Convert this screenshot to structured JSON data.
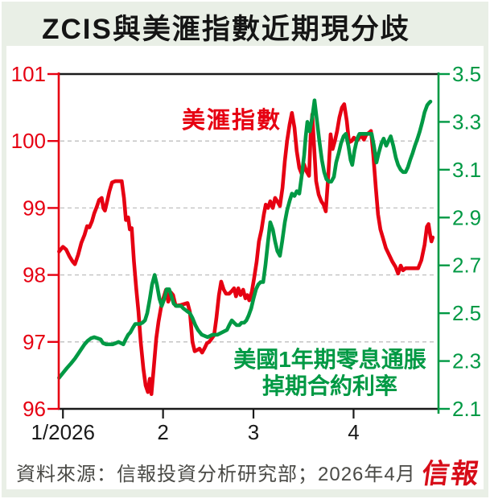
{
  "title": "ZCIS與美滙指數近期現分歧",
  "labels": {
    "red_series": "美滙指數",
    "green_series_line1": "美國1年期零息通脹",
    "green_series_line2": "掉期合約利率"
  },
  "footer": {
    "source": "資料來源：信報投資分析研究部；2026年4月",
    "logo": "信報"
  },
  "colors": {
    "red": "#e60012",
    "green": "#009944",
    "axis_black": "#1a1a1a",
    "gridline": "#bfbfbf",
    "background_mint": "#e9efe6"
  },
  "chart_data": {
    "type": "line",
    "title": "ZCIS與美滙指數近期現分歧",
    "x_unit": "days since 1/2026 (daily series, Jan–late Apr 2026)",
    "x_axis": {
      "range": [
        -1.3,
        116.3
      ],
      "ticks": [
        0,
        31,
        59,
        90
      ],
      "tick_labels": [
        "1/2026",
        "2",
        "3",
        "4"
      ]
    },
    "left_axis": {
      "name": "美滙指數",
      "color": "#e60012",
      "range": [
        96,
        101
      ],
      "ticks": [
        96,
        97,
        98,
        99,
        100,
        101
      ]
    },
    "right_axis": {
      "name": "美國1年期零息通脹掉期合約利率 (%)",
      "color": "#009944",
      "range": [
        2.1,
        3.5
      ],
      "ticks": [
        2.1,
        2.3,
        2.5,
        2.7,
        2.9,
        3.1,
        3.3,
        3.5
      ]
    },
    "gridlines_left_values": [
      97,
      98,
      99,
      100
    ],
    "legend_position": "in-plot text labels",
    "series": [
      {
        "name": "美滙指數",
        "axis": "left",
        "color": "#e60012",
        "points": [
          [
            -1.2,
            98.35
          ],
          [
            0,
            98.42
          ],
          [
            1,
            98.38
          ],
          [
            2,
            98.28
          ],
          [
            3,
            98.2
          ],
          [
            3.7,
            98.16
          ],
          [
            4.7,
            98.3
          ],
          [
            5.7,
            98.48
          ],
          [
            6.7,
            98.6
          ],
          [
            7.5,
            98.73
          ],
          [
            8.2,
            98.71
          ],
          [
            9,
            98.8
          ],
          [
            9.7,
            98.92
          ],
          [
            10.5,
            99.02
          ],
          [
            11.2,
            99.12
          ],
          [
            12,
            99.15
          ],
          [
            12.5,
            99.0
          ],
          [
            13,
            98.96
          ],
          [
            13.7,
            99.1
          ],
          [
            14.4,
            99.25
          ],
          [
            15.2,
            99.38
          ],
          [
            16.2,
            99.4
          ],
          [
            18.2,
            99.4
          ],
          [
            18.9,
            99.15
          ],
          [
            19.5,
            98.82
          ],
          [
            20.2,
            98.86
          ],
          [
            20.7,
            98.68
          ],
          [
            21.3,
            98.7
          ],
          [
            22,
            98.2
          ],
          [
            22.7,
            97.8
          ],
          [
            23.4,
            97.45
          ],
          [
            24.1,
            97.0
          ],
          [
            24.9,
            96.6
          ],
          [
            25.6,
            96.35
          ],
          [
            26.3,
            96.25
          ],
          [
            26.9,
            96.45
          ],
          [
            27.4,
            96.22
          ],
          [
            28.1,
            96.6
          ],
          [
            28.9,
            97.05
          ],
          [
            29.6,
            97.3
          ],
          [
            30.4,
            97.52
          ],
          [
            31.1,
            97.65
          ],
          [
            31.9,
            97.78
          ],
          [
            32.6,
            97.6
          ],
          [
            33.4,
            97.74
          ],
          [
            34.1,
            97.7
          ],
          [
            34.9,
            97.54
          ],
          [
            36.5,
            97.55
          ],
          [
            38.6,
            97.58
          ],
          [
            39.3,
            97.45
          ],
          [
            40.1,
            97.0
          ],
          [
            40.8,
            96.86
          ],
          [
            41.6,
            96.88
          ],
          [
            42.3,
            96.9
          ],
          [
            43.1,
            96.84
          ],
          [
            43.8,
            96.9
          ],
          [
            44.6,
            96.98
          ],
          [
            45.3,
            97.0
          ],
          [
            46.1,
            97.05
          ],
          [
            46.8,
            97.1
          ],
          [
            47.5,
            97.35
          ],
          [
            48.3,
            97.7
          ],
          [
            49,
            97.9
          ],
          [
            49.8,
            97.78
          ],
          [
            50.5,
            97.72
          ],
          [
            51.5,
            97.72
          ],
          [
            52.3,
            97.76
          ],
          [
            53,
            97.8
          ],
          [
            53.6,
            97.68
          ],
          [
            54.3,
            97.8
          ],
          [
            55,
            97.7
          ],
          [
            55.8,
            97.78
          ],
          [
            56.5,
            97.65
          ],
          [
            57.1,
            97.7
          ],
          [
            57.7,
            97.62
          ],
          [
            58.5,
            97.75
          ],
          [
            59.2,
            97.95
          ],
          [
            60,
            98.2
          ],
          [
            60.7,
            98.5
          ],
          [
            61.5,
            98.68
          ],
          [
            62.2,
            98.9
          ],
          [
            62.8,
            99.05
          ],
          [
            63.5,
            99.0
          ],
          [
            64.2,
            99.1
          ],
          [
            65,
            99.0
          ],
          [
            65.7,
            99.15
          ],
          [
            66.4,
            99.1
          ],
          [
            67.2,
            99.03
          ],
          [
            68,
            99.3
          ],
          [
            68.7,
            99.7
          ],
          [
            69.4,
            100.0
          ],
          [
            70.2,
            100.25
          ],
          [
            70.9,
            100.42
          ],
          [
            71.7,
            100.2
          ],
          [
            72.4,
            99.85
          ],
          [
            73.2,
            99.6
          ],
          [
            74,
            99.5
          ],
          [
            74.7,
            99.65
          ],
          [
            75.4,
            99.55
          ],
          [
            76.2,
            99.48
          ],
          [
            76.7,
            100.08
          ],
          [
            77.2,
            100.4
          ],
          [
            77.8,
            99.9
          ],
          [
            78.4,
            99.4
          ],
          [
            79.2,
            99.2
          ],
          [
            80,
            99.1
          ],
          [
            80.7,
            99.05
          ],
          [
            81.4,
            98.95
          ],
          [
            82.2,
            99.5
          ],
          [
            82.9,
            100.1
          ],
          [
            83.5,
            99.88
          ],
          [
            84.2,
            100.0
          ],
          [
            84.9,
            100.15
          ],
          [
            85.6,
            100.35
          ],
          [
            86.4,
            100.5
          ],
          [
            87.1,
            100.55
          ],
          [
            87.9,
            100.3
          ],
          [
            88.6,
            99.98
          ],
          [
            89.4,
            100.0
          ],
          [
            90.1,
            100.05
          ],
          [
            91,
            100.0
          ],
          [
            91.8,
            100.05
          ],
          [
            92.5,
            100.08
          ],
          [
            93.2,
            100.02
          ],
          [
            94,
            100.1
          ],
          [
            94.7,
            100.12
          ],
          [
            95.4,
            100.15
          ],
          [
            96.1,
            99.8
          ],
          [
            96.9,
            99.3
          ],
          [
            97.6,
            98.9
          ],
          [
            98.3,
            98.68
          ],
          [
            99.1,
            98.55
          ],
          [
            100,
            98.4
          ],
          [
            101,
            98.3
          ],
          [
            102,
            98.2
          ],
          [
            103,
            98.12
          ],
          [
            103.8,
            98.02
          ],
          [
            104.6,
            98.14
          ],
          [
            105.3,
            98.07
          ],
          [
            106.1,
            98.1
          ],
          [
            108,
            98.1
          ],
          [
            110,
            98.1
          ],
          [
            111,
            98.22
          ],
          [
            112,
            98.45
          ],
          [
            112.7,
            98.72
          ],
          [
            113.2,
            98.76
          ],
          [
            113.7,
            98.6
          ],
          [
            114.1,
            98.5
          ],
          [
            114.5,
            98.56
          ]
        ]
      },
      {
        "name": "美國1年期零息通脹掉期合約利率",
        "axis": "right",
        "color": "#009944",
        "points": [
          [
            -1.2,
            2.23
          ],
          [
            0,
            2.25
          ],
          [
            1.2,
            2.27
          ],
          [
            2.5,
            2.29
          ],
          [
            3.7,
            2.31
          ],
          [
            4.7,
            2.33
          ],
          [
            5.7,
            2.35
          ],
          [
            6.7,
            2.37
          ],
          [
            7.7,
            2.385
          ],
          [
            8.7,
            2.395
          ],
          [
            9.7,
            2.4
          ],
          [
            10.7,
            2.395
          ],
          [
            11.7,
            2.39
          ],
          [
            12.4,
            2.375
          ],
          [
            13.4,
            2.37
          ],
          [
            15.4,
            2.37
          ],
          [
            16.4,
            2.375
          ],
          [
            17.2,
            2.38
          ],
          [
            18.7,
            2.37
          ],
          [
            19.4,
            2.39
          ],
          [
            20.2,
            2.41
          ],
          [
            20.9,
            2.42
          ],
          [
            21.7,
            2.44
          ],
          [
            22.4,
            2.455
          ],
          [
            23.9,
            2.455
          ],
          [
            24.6,
            2.46
          ],
          [
            25.4,
            2.47
          ],
          [
            26.1,
            2.5
          ],
          [
            26.9,
            2.56
          ],
          [
            27.6,
            2.62
          ],
          [
            28.4,
            2.66
          ],
          [
            29.1,
            2.62
          ],
          [
            29.9,
            2.56
          ],
          [
            30.6,
            2.53
          ],
          [
            31.4,
            2.56
          ],
          [
            32.1,
            2.6
          ],
          [
            32.9,
            2.6
          ],
          [
            33.6,
            2.57
          ],
          [
            34.3,
            2.54
          ],
          [
            35.1,
            2.53
          ],
          [
            36.6,
            2.53
          ],
          [
            37.3,
            2.52
          ],
          [
            38.3,
            2.51
          ],
          [
            39.3,
            2.5
          ],
          [
            40.1,
            2.48
          ],
          [
            41,
            2.45
          ],
          [
            41.8,
            2.43
          ],
          [
            43,
            2.41
          ],
          [
            44.8,
            2.4
          ],
          [
            46.3,
            2.41
          ],
          [
            47.8,
            2.41
          ],
          [
            49.3,
            2.42
          ],
          [
            50.8,
            2.43
          ],
          [
            51.5,
            2.45
          ],
          [
            52.3,
            2.47
          ],
          [
            53,
            2.46
          ],
          [
            53.8,
            2.45
          ],
          [
            54.6,
            2.45
          ],
          [
            55.3,
            2.46
          ],
          [
            56.1,
            2.46
          ],
          [
            56.8,
            2.47
          ],
          [
            57.5,
            2.49
          ],
          [
            58.3,
            2.52
          ],
          [
            59,
            2.56
          ],
          [
            59.8,
            2.6
          ],
          [
            60.5,
            2.62
          ],
          [
            61.2,
            2.63
          ],
          [
            62,
            2.63
          ],
          [
            62.7,
            2.7
          ],
          [
            63.5,
            2.8
          ],
          [
            64.2,
            2.88
          ],
          [
            65,
            2.85
          ],
          [
            65.7,
            2.8
          ],
          [
            66.4,
            2.76
          ],
          [
            67.2,
            2.74
          ],
          [
            67.9,
            2.8
          ],
          [
            68.7,
            2.88
          ],
          [
            69.4,
            2.93
          ],
          [
            70.2,
            2.97
          ],
          [
            70.9,
            3.0
          ],
          [
            71.7,
            2.99
          ],
          [
            72.4,
            3.01
          ],
          [
            73.2,
            3.0
          ],
          [
            74,
            3.08
          ],
          [
            74.7,
            3.16
          ],
          [
            75.2,
            3.24
          ],
          [
            75.7,
            3.3
          ],
          [
            76.4,
            3.26
          ],
          [
            77.2,
            3.32
          ],
          [
            77.9,
            3.39
          ],
          [
            78.7,
            3.3
          ],
          [
            79.4,
            3.22
          ],
          [
            80.2,
            3.14
          ],
          [
            80.9,
            3.09
          ],
          [
            81.6,
            3.06
          ],
          [
            82.4,
            3.05
          ],
          [
            83.1,
            3.05
          ],
          [
            83.9,
            3.07
          ],
          [
            84.6,
            3.13
          ],
          [
            85.4,
            3.17
          ],
          [
            86.1,
            3.21
          ],
          [
            86.9,
            3.24
          ],
          [
            87.6,
            3.25
          ],
          [
            88.4,
            3.2
          ],
          [
            89.1,
            3.14
          ],
          [
            89.6,
            3.12
          ],
          [
            90.3,
            3.18
          ],
          [
            91.1,
            3.23
          ],
          [
            91.8,
            3.25
          ],
          [
            94.8,
            3.25
          ],
          [
            95.6,
            3.25
          ],
          [
            96.3,
            3.2
          ],
          [
            97.1,
            3.13
          ],
          [
            97.8,
            3.17
          ],
          [
            98.6,
            3.21
          ],
          [
            99.3,
            3.23
          ],
          [
            100.1,
            3.2
          ],
          [
            100.8,
            3.22
          ],
          [
            101.5,
            3.24
          ],
          [
            102.3,
            3.2
          ],
          [
            103.1,
            3.15
          ],
          [
            103.8,
            3.12
          ],
          [
            104.6,
            3.1
          ],
          [
            105.3,
            3.09
          ],
          [
            106.1,
            3.09
          ],
          [
            106.8,
            3.11
          ],
          [
            107.5,
            3.14
          ],
          [
            108.3,
            3.17
          ],
          [
            109,
            3.2
          ],
          [
            109.8,
            3.23
          ],
          [
            110.5,
            3.26
          ],
          [
            111.3,
            3.3
          ],
          [
            112,
            3.34
          ],
          [
            112.8,
            3.37
          ],
          [
            113.4,
            3.38
          ],
          [
            113.8,
            3.385
          ]
        ]
      }
    ],
    "annotations": [
      {
        "text": "美滙指數",
        "color": "#e60012"
      },
      {
        "text": "美國1年期零息通脹掉期合約利率",
        "color": "#009944"
      }
    ],
    "source": "資料來源：信報投資分析研究部；2026年4月"
  }
}
